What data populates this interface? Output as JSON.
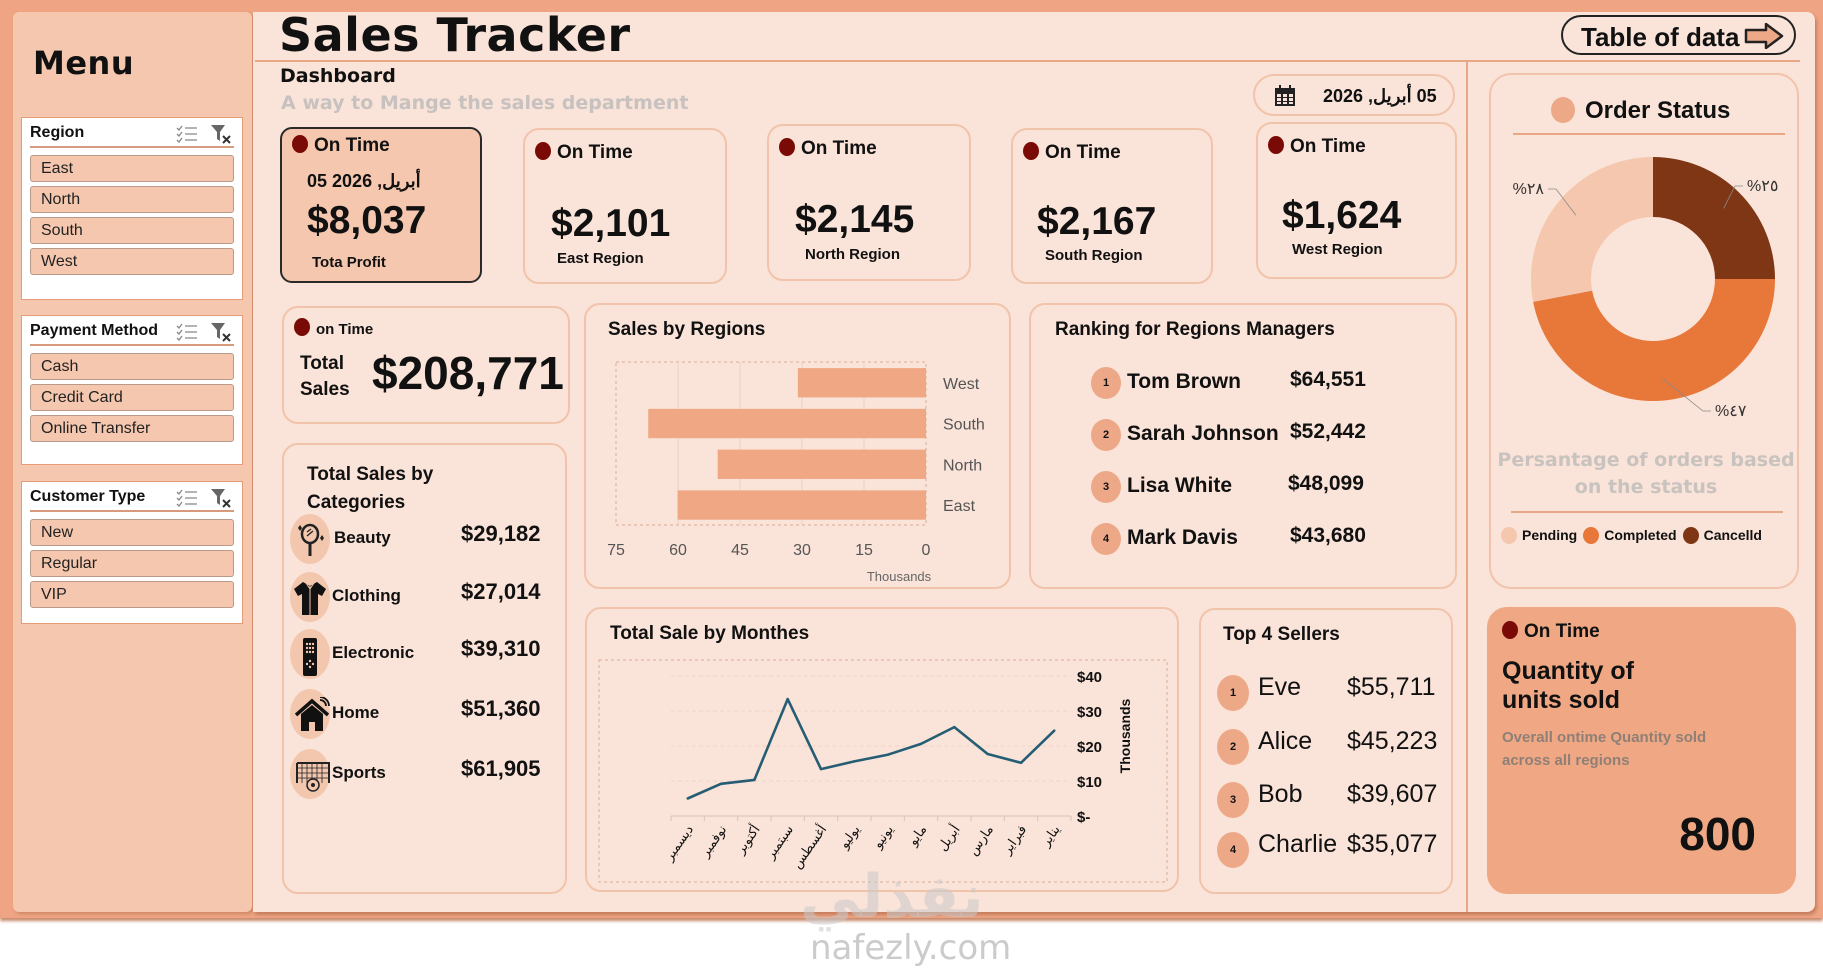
{
  "sidebar": {
    "title": "Menu",
    "slicers": [
      {
        "title": "Region",
        "items": [
          "East",
          "North",
          "South",
          "West"
        ]
      },
      {
        "title": "Payment Method",
        "items": [
          "Cash",
          "Credit Card",
          "Online Transfer"
        ]
      },
      {
        "title": "Customer Type",
        "items": [
          "New",
          "Regular",
          "VIP"
        ]
      }
    ],
    "multiselect_icon": "multiselect-icon",
    "clear_filter_icon": "clear-filter-icon"
  },
  "header": {
    "title": "Sales Tracker",
    "section": "Dashboard",
    "subtitle": "A way to Mange the sales department",
    "table_button": "Table of data",
    "date": "05 أبريل, 2026"
  },
  "kpis": {
    "profit": {
      "status": "On Time",
      "date": "05 أبريل, 2026",
      "value": "$8,037",
      "label": "Tota Profit"
    },
    "east": {
      "status": "On Time",
      "value": "$2,101",
      "label": "East Region"
    },
    "north": {
      "status": "On Time",
      "value": "$2,145",
      "label": "North Region"
    },
    "south": {
      "status": "On Time",
      "value": "$2,167",
      "label": "South Region"
    },
    "west": {
      "status": "On Time",
      "value": "$1,624",
      "label": "West Region"
    }
  },
  "total_sales": {
    "status": "on Time",
    "label_line1": "Total",
    "label_line2": "Sales",
    "value": "$208,771"
  },
  "categories": {
    "title_line1": "Total Sales by",
    "title_line2": "Categories",
    "items": [
      {
        "name": "Beauty",
        "value": "$29,182",
        "icon": "mirror-icon"
      },
      {
        "name": "Clothing",
        "value": "$27,014",
        "icon": "shirt-icon"
      },
      {
        "name": "Electronic",
        "value": "$39,310",
        "icon": "remote-icon"
      },
      {
        "name": "Home",
        "value": "$51,360",
        "icon": "smart-home-icon"
      },
      {
        "name": "Sports",
        "value": "$61,905",
        "icon": "soccer-goal-icon"
      }
    ]
  },
  "ranking": {
    "title": "Ranking for Regions Managers",
    "items": [
      {
        "rank": "1",
        "name": "Tom Brown",
        "value": "$64,551"
      },
      {
        "rank": "2",
        "name": "Sarah Johnson",
        "value": "$52,442"
      },
      {
        "rank": "3",
        "name": "Lisa White",
        "value": "$48,099"
      },
      {
        "rank": "4",
        "name": "Mark Davis",
        "value": "$43,680"
      }
    ]
  },
  "top_sellers": {
    "title": "Top 4 Sellers",
    "items": [
      {
        "rank": "1",
        "name": "Eve",
        "value": "$55,711"
      },
      {
        "rank": "2",
        "name": "Alice",
        "value": "$45,223"
      },
      {
        "rank": "3",
        "name": "Bob",
        "value": "$39,607"
      },
      {
        "rank": "4",
        "name": "Charlie",
        "value": "$35,077"
      }
    ]
  },
  "quantity": {
    "status": "On Time",
    "title_line1": "Quantity of",
    "title_line2": "units sold",
    "desc_line1": "Overall ontime Quantity sold",
    "desc_line2": "across all regions",
    "value": "800"
  },
  "order_status": {
    "title": "Order Status",
    "caption_line1": "Persantage of orders based",
    "caption_line2": "on the status"
  },
  "watermark": {
    "arabic": "نفذلي",
    "latin": "nafezly.com"
  },
  "colors": {
    "accent": "#EDA887",
    "status_dot": "#7A0A06",
    "pending": "#F5C7AE",
    "completed": "#E8773A",
    "cancelled": "#7E3614",
    "line": "#255E74",
    "bar": "#EFA883"
  },
  "chart_data": [
    {
      "type": "bar",
      "orientation": "horizontal",
      "title": "Sales by Regions",
      "categories": [
        "East",
        "North",
        "South",
        "West"
      ],
      "values": [
        60.1,
        50.4,
        67.2,
        31.0
      ],
      "xlabel": "Thousands",
      "xlim": [
        0,
        75
      ],
      "x_reversed": true,
      "xticks": [
        "75",
        "60",
        "45",
        "30",
        "15",
        "0"
      ],
      "grid": true
    },
    {
      "type": "line",
      "title": "Total Sale by Monthes",
      "categories": [
        "يناير",
        "فبراير",
        "مارس",
        "أبريل",
        "مايو",
        "يونيو",
        "يوليو",
        "أغسطس",
        "سبتمبر",
        "أكتوبر",
        "نوفمبر",
        "ديسمبر"
      ],
      "values": [
        24.4,
        15.2,
        17.7,
        25.4,
        20.6,
        17.5,
        15.6,
        13.4,
        33.4,
        10.3,
        9.2,
        5.0
      ],
      "ylabel": "Thousands",
      "ylim": [
        0,
        40
      ],
      "yticks": [
        "$-",
        "$10",
        "$20",
        "$30",
        "$40"
      ],
      "x_reversed": true,
      "grid": true
    },
    {
      "type": "pie",
      "variant": "donut",
      "title": "Order Status",
      "labels": [
        "Cancelld",
        "Completed",
        "Pending"
      ],
      "values": [
        25,
        47,
        28
      ],
      "data_labels": [
        "%٢٥",
        "%٤٧",
        "%٢٨"
      ],
      "legend": [
        "Pending",
        "Completed",
        "Cancelld"
      ],
      "legend_position": "bottom"
    }
  ]
}
